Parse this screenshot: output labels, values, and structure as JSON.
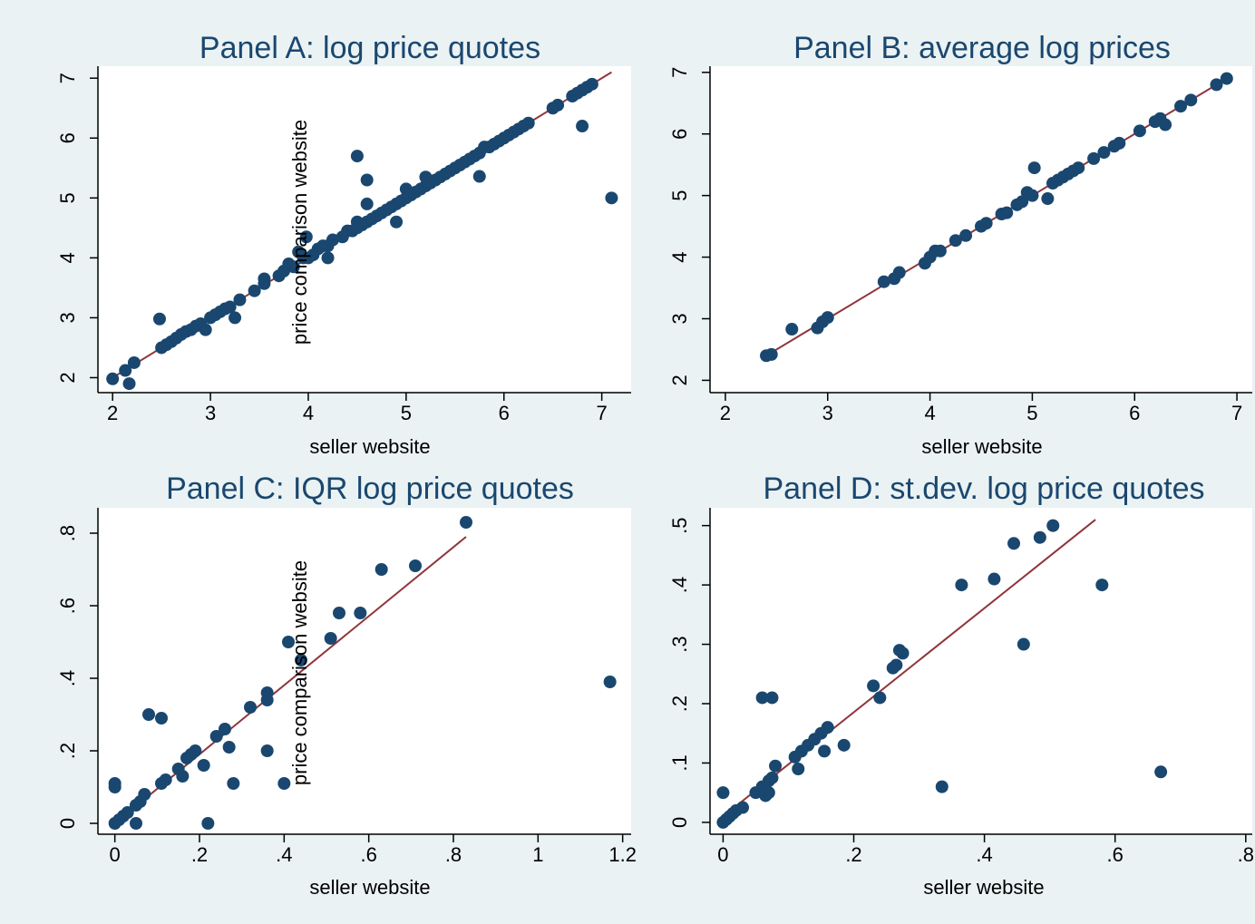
{
  "chart_data": [
    {
      "type": "scatter",
      "title": "Panel A: log price quotes",
      "xlabel": "seller website",
      "ylabel": "price comparison website",
      "xlim": [
        1.85,
        7.3
      ],
      "ylim": [
        1.75,
        7.2
      ],
      "xticks": [
        2,
        3,
        4,
        5,
        6,
        7
      ],
      "xtick_labels": [
        "2",
        "3",
        "4",
        "5",
        "6",
        "7"
      ],
      "yticks": [
        2,
        3,
        4,
        5,
        6,
        7
      ],
      "ytick_labels": [
        "2",
        "3",
        "4",
        "5",
        "6",
        "7"
      ],
      "grid": false,
      "marker_color": "#1a476f",
      "fit_color": "#90353b",
      "fit_line": {
        "x": [
          2.0,
          7.1
        ],
        "y": [
          2.0,
          7.1
        ]
      },
      "points": [
        [
          2.0,
          1.98
        ],
        [
          2.13,
          2.12
        ],
        [
          2.17,
          1.9
        ],
        [
          2.22,
          2.25
        ],
        [
          2.48,
          2.98
        ],
        [
          2.5,
          2.5
        ],
        [
          2.55,
          2.55
        ],
        [
          2.6,
          2.6
        ],
        [
          2.65,
          2.66
        ],
        [
          2.7,
          2.72
        ],
        [
          2.75,
          2.77
        ],
        [
          2.8,
          2.8
        ],
        [
          2.85,
          2.86
        ],
        [
          2.9,
          2.9
        ],
        [
          2.95,
          2.8
        ],
        [
          3.0,
          3.0
        ],
        [
          3.05,
          3.05
        ],
        [
          3.1,
          3.1
        ],
        [
          3.15,
          3.15
        ],
        [
          3.2,
          3.18
        ],
        [
          3.25,
          3.0
        ],
        [
          3.3,
          3.3
        ],
        [
          3.45,
          3.45
        ],
        [
          3.55,
          3.57
        ],
        [
          3.55,
          3.65
        ],
        [
          3.7,
          3.7
        ],
        [
          3.75,
          3.78
        ],
        [
          3.8,
          3.9
        ],
        [
          3.85,
          3.85
        ],
        [
          3.9,
          4.1
        ],
        [
          3.95,
          4.0
        ],
        [
          3.98,
          4.35
        ],
        [
          4.0,
          4.0
        ],
        [
          4.05,
          4.05
        ],
        [
          4.1,
          4.15
        ],
        [
          4.15,
          4.2
        ],
        [
          4.2,
          4.0
        ],
        [
          4.2,
          4.2
        ],
        [
          4.25,
          4.3
        ],
        [
          4.35,
          4.35
        ],
        [
          4.4,
          4.45
        ],
        [
          4.45,
          4.45
        ],
        [
          4.5,
          4.5
        ],
        [
          4.5,
          4.6
        ],
        [
          4.5,
          5.7
        ],
        [
          4.55,
          4.55
        ],
        [
          4.6,
          4.6
        ],
        [
          4.6,
          5.3
        ],
        [
          4.6,
          4.9
        ],
        [
          4.65,
          4.65
        ],
        [
          4.7,
          4.7
        ],
        [
          4.75,
          4.75
        ],
        [
          4.8,
          4.8
        ],
        [
          4.85,
          4.85
        ],
        [
          4.9,
          4.9
        ],
        [
          4.9,
          4.6
        ],
        [
          4.95,
          4.95
        ],
        [
          5.0,
          5.0
        ],
        [
          5.0,
          5.15
        ],
        [
          5.05,
          5.05
        ],
        [
          5.1,
          5.1
        ],
        [
          5.15,
          5.15
        ],
        [
          5.2,
          5.2
        ],
        [
          5.2,
          5.35
        ],
        [
          5.25,
          5.25
        ],
        [
          5.3,
          5.3
        ],
        [
          5.35,
          5.35
        ],
        [
          5.4,
          5.4
        ],
        [
          5.45,
          5.45
        ],
        [
          5.5,
          5.5
        ],
        [
          5.55,
          5.55
        ],
        [
          5.6,
          5.6
        ],
        [
          5.65,
          5.65
        ],
        [
          5.7,
          5.7
        ],
        [
          5.75,
          5.75
        ],
        [
          5.75,
          5.36
        ],
        [
          5.8,
          5.85
        ],
        [
          5.85,
          5.85
        ],
        [
          5.9,
          5.9
        ],
        [
          5.95,
          5.95
        ],
        [
          6.0,
          6.0
        ],
        [
          6.05,
          6.05
        ],
        [
          6.1,
          6.1
        ],
        [
          6.15,
          6.15
        ],
        [
          6.2,
          6.2
        ],
        [
          6.25,
          6.25
        ],
        [
          6.5,
          6.5
        ],
        [
          6.55,
          6.55
        ],
        [
          6.7,
          6.7
        ],
        [
          6.75,
          6.75
        ],
        [
          6.8,
          6.8
        ],
        [
          6.8,
          6.2
        ],
        [
          6.85,
          6.85
        ],
        [
          6.9,
          6.9
        ],
        [
          7.1,
          5.0
        ]
      ]
    },
    {
      "type": "scatter",
      "title": "Panel B: average log prices",
      "xlabel": "seller website",
      "ylabel": "",
      "xlim": [
        1.85,
        7.15
      ],
      "ylim": [
        1.8,
        7.1
      ],
      "xticks": [
        2,
        3,
        4,
        5,
        6,
        7
      ],
      "xtick_labels": [
        "2",
        "3",
        "4",
        "5",
        "6",
        "7"
      ],
      "yticks": [
        2,
        3,
        4,
        5,
        6,
        7
      ],
      "ytick_labels": [
        "2",
        "3",
        "4",
        "5",
        "6",
        "7"
      ],
      "grid": false,
      "marker_color": "#1a476f",
      "fit_color": "#90353b",
      "fit_line": {
        "x": [
          2.4,
          6.9
        ],
        "y": [
          2.4,
          6.9
        ]
      },
      "points": [
        [
          2.4,
          2.4
        ],
        [
          2.45,
          2.42
        ],
        [
          2.65,
          2.83
        ],
        [
          2.9,
          2.85
        ],
        [
          2.95,
          2.95
        ],
        [
          3.0,
          3.02
        ],
        [
          3.55,
          3.6
        ],
        [
          3.65,
          3.65
        ],
        [
          3.7,
          3.75
        ],
        [
          3.95,
          3.9
        ],
        [
          4.0,
          4.0
        ],
        [
          4.05,
          4.1
        ],
        [
          4.1,
          4.1
        ],
        [
          4.25,
          4.27
        ],
        [
          4.35,
          4.35
        ],
        [
          4.5,
          4.5
        ],
        [
          4.55,
          4.55
        ],
        [
          4.7,
          4.7
        ],
        [
          4.75,
          4.72
        ],
        [
          4.85,
          4.85
        ],
        [
          4.9,
          4.9
        ],
        [
          4.95,
          5.05
        ],
        [
          5.0,
          5.0
        ],
        [
          5.02,
          5.45
        ],
        [
          5.15,
          4.95
        ],
        [
          5.2,
          5.2
        ],
        [
          5.25,
          5.25
        ],
        [
          5.3,
          5.3
        ],
        [
          5.35,
          5.35
        ],
        [
          5.4,
          5.4
        ],
        [
          5.45,
          5.45
        ],
        [
          5.6,
          5.6
        ],
        [
          5.7,
          5.7
        ],
        [
          5.8,
          5.8
        ],
        [
          5.85,
          5.85
        ],
        [
          6.05,
          6.05
        ],
        [
          6.2,
          6.2
        ],
        [
          6.25,
          6.25
        ],
        [
          6.3,
          6.15
        ],
        [
          6.45,
          6.45
        ],
        [
          6.55,
          6.55
        ],
        [
          6.8,
          6.8
        ],
        [
          6.9,
          6.9
        ]
      ]
    },
    {
      "type": "scatter",
      "title": "Panel C: IQR log price quotes",
      "xlabel": "seller website",
      "ylabel": "price comparison website",
      "xlim": [
        -0.04,
        1.22
      ],
      "ylim": [
        -0.03,
        0.87
      ],
      "xticks": [
        0,
        0.2,
        0.4,
        0.6,
        0.8,
        1,
        1.2
      ],
      "xtick_labels": [
        "0",
        ".2",
        ".4",
        ".6",
        ".8",
        "1",
        "1.2"
      ],
      "yticks": [
        0,
        0.2,
        0.4,
        0.6,
        0.8
      ],
      "ytick_labels": [
        "0",
        ".2",
        ".4",
        ".6",
        ".8"
      ],
      "grid": false,
      "marker_color": "#1a476f",
      "fit_color": "#90353b",
      "fit_line": {
        "x": [
          0.0,
          0.83
        ],
        "y": [
          0.0,
          0.79
        ]
      },
      "points": [
        [
          0.0,
          0.0
        ],
        [
          0.0,
          0.1
        ],
        [
          0.0,
          0.11
        ],
        [
          0.01,
          0.01
        ],
        [
          0.02,
          0.02
        ],
        [
          0.03,
          0.03
        ],
        [
          0.05,
          0.05
        ],
        [
          0.05,
          0.0
        ],
        [
          0.06,
          0.06
        ],
        [
          0.07,
          0.08
        ],
        [
          0.08,
          0.3
        ],
        [
          0.11,
          0.11
        ],
        [
          0.11,
          0.29
        ],
        [
          0.12,
          0.12
        ],
        [
          0.15,
          0.15
        ],
        [
          0.16,
          0.13
        ],
        [
          0.17,
          0.18
        ],
        [
          0.18,
          0.19
        ],
        [
          0.19,
          0.2
        ],
        [
          0.21,
          0.16
        ],
        [
          0.22,
          0.0
        ],
        [
          0.24,
          0.24
        ],
        [
          0.26,
          0.26
        ],
        [
          0.27,
          0.21
        ],
        [
          0.28,
          0.11
        ],
        [
          0.32,
          0.32
        ],
        [
          0.36,
          0.34
        ],
        [
          0.36,
          0.36
        ],
        [
          0.36,
          0.2
        ],
        [
          0.4,
          0.11
        ],
        [
          0.41,
          0.5
        ],
        [
          0.44,
          0.45
        ],
        [
          0.51,
          0.51
        ],
        [
          0.53,
          0.58
        ],
        [
          0.58,
          0.58
        ],
        [
          0.63,
          0.7
        ],
        [
          0.71,
          0.71
        ],
        [
          0.83,
          0.83
        ],
        [
          1.17,
          0.39
        ]
      ]
    },
    {
      "type": "scatter",
      "title": "Panel D: st.dev. log price quotes",
      "xlabel": "seller website",
      "ylabel": "",
      "xlim": [
        -0.02,
        0.81
      ],
      "ylim": [
        -0.02,
        0.53
      ],
      "xticks": [
        0,
        0.2,
        0.4,
        0.6,
        0.8
      ],
      "xtick_labels": [
        "0",
        ".2",
        ".4",
        ".6",
        ".8"
      ],
      "yticks": [
        0,
        0.1,
        0.2,
        0.3,
        0.4,
        0.5
      ],
      "ytick_labels": [
        "0",
        ".1",
        ".2",
        ".3",
        ".4",
        ".5"
      ],
      "grid": false,
      "marker_color": "#1a476f",
      "fit_color": "#90353b",
      "fit_line": {
        "x": [
          0.0,
          0.57
        ],
        "y": [
          0.01,
          0.51
        ]
      },
      "points": [
        [
          0.0,
          0.0
        ],
        [
          0.0,
          0.05
        ],
        [
          0.005,
          0.005
        ],
        [
          0.01,
          0.01
        ],
        [
          0.015,
          0.015
        ],
        [
          0.02,
          0.02
        ],
        [
          0.03,
          0.025
        ],
        [
          0.05,
          0.05
        ],
        [
          0.06,
          0.06
        ],
        [
          0.06,
          0.21
        ],
        [
          0.065,
          0.045
        ],
        [
          0.07,
          0.05
        ],
        [
          0.07,
          0.07
        ],
        [
          0.075,
          0.075
        ],
        [
          0.075,
          0.21
        ],
        [
          0.08,
          0.095
        ],
        [
          0.11,
          0.11
        ],
        [
          0.115,
          0.09
        ],
        [
          0.12,
          0.12
        ],
        [
          0.13,
          0.13
        ],
        [
          0.14,
          0.14
        ],
        [
          0.15,
          0.15
        ],
        [
          0.155,
          0.12
        ],
        [
          0.16,
          0.16
        ],
        [
          0.185,
          0.13
        ],
        [
          0.23,
          0.23
        ],
        [
          0.24,
          0.21
        ],
        [
          0.26,
          0.26
        ],
        [
          0.265,
          0.265
        ],
        [
          0.27,
          0.29
        ],
        [
          0.275,
          0.285
        ],
        [
          0.335,
          0.06
        ],
        [
          0.365,
          0.4
        ],
        [
          0.415,
          0.41
        ],
        [
          0.445,
          0.47
        ],
        [
          0.46,
          0.3
        ],
        [
          0.485,
          0.48
        ],
        [
          0.505,
          0.5
        ],
        [
          0.58,
          0.4
        ],
        [
          0.67,
          0.085
        ]
      ]
    }
  ]
}
